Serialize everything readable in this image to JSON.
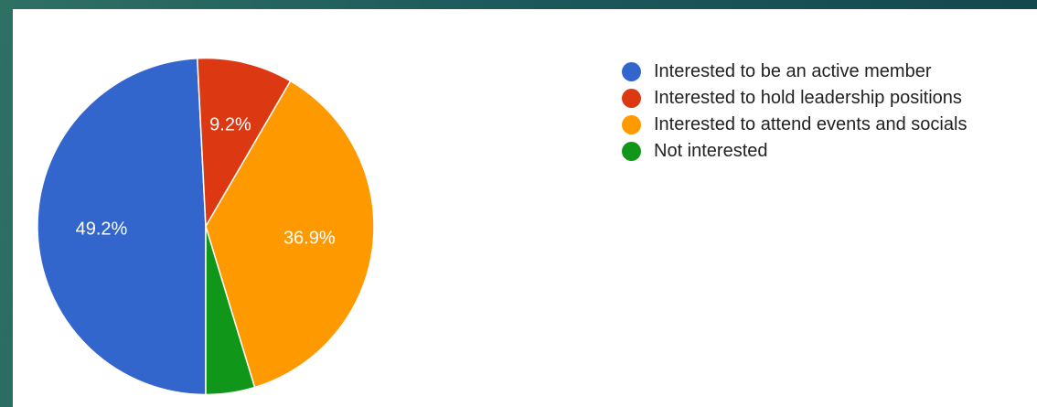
{
  "chart_data": {
    "type": "pie",
    "title": "",
    "start_angle_deg": 90,
    "direction": "clockwise",
    "legend_position": "right",
    "labels": [
      "Interested to be an active member",
      "Interested to hold leadership positions",
      "Interested to attend events and socials",
      "Not interested"
    ],
    "values": [
      49.2,
      9.2,
      36.9,
      4.7
    ],
    "data_labels": [
      "49.2%",
      "9.2%",
      "36.9%",
      ""
    ],
    "colors": [
      "#3366cc",
      "#dc3912",
      "#ff9900",
      "#109618"
    ]
  },
  "legend": {
    "items": [
      {
        "label": "Interested to be an active member",
        "color": "#3366cc"
      },
      {
        "label": "Interested to hold leadership positions",
        "color": "#dc3912"
      },
      {
        "label": "Interested to attend events and socials",
        "color": "#ff9900"
      },
      {
        "label": "Not interested",
        "color": "#109618"
      }
    ]
  }
}
